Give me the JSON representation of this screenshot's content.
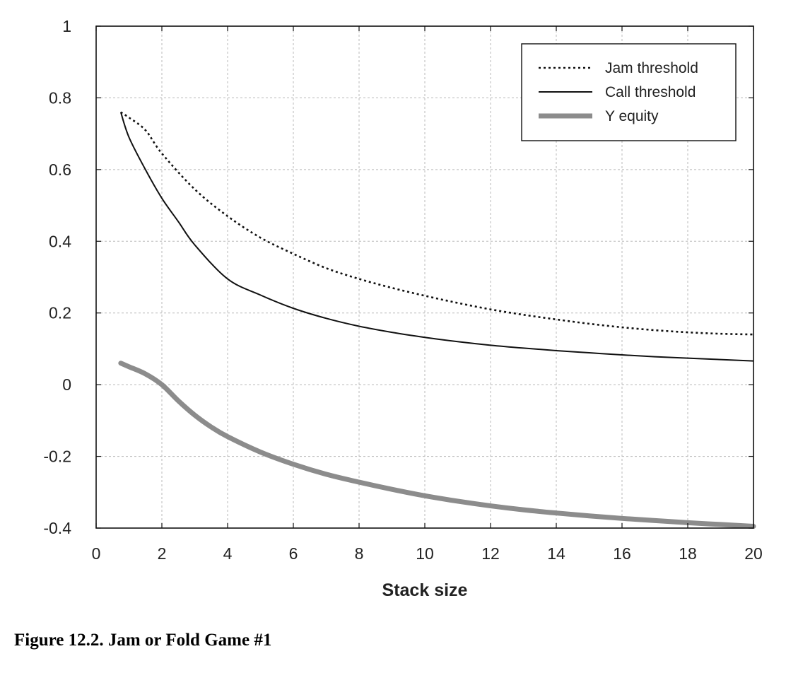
{
  "caption": "Figure 12.2. Jam or Fold Game #1",
  "chart_data": {
    "type": "line",
    "title": "",
    "xlabel": "Stack size",
    "ylabel": "",
    "xlim": [
      0,
      20
    ],
    "ylim": [
      -0.4,
      1
    ],
    "xticks": [
      0,
      2,
      4,
      6,
      8,
      10,
      12,
      14,
      16,
      18,
      20
    ],
    "xtick_labels": [
      "0",
      "2",
      "4",
      "6",
      "8",
      "10",
      "12",
      "14",
      "16",
      "18",
      "20"
    ],
    "yticks": [
      -0.4,
      -0.2,
      0,
      0.2,
      0.4,
      0.6,
      0.8,
      1
    ],
    "ytick_labels": [
      "-0.4",
      "-0.2",
      "0",
      "0.2",
      "0.4",
      "0.6",
      "0.8",
      "1"
    ],
    "grid": true,
    "legend_position": "top-right",
    "series": [
      {
        "name": "Jam threshold",
        "style": "dotted",
        "color": "#111111",
        "x": [
          0.75,
          1,
          1.5,
          2,
          3,
          4,
          5,
          6,
          7,
          8,
          9,
          10,
          11,
          12,
          13,
          14,
          15,
          16,
          17,
          18,
          19,
          20
        ],
        "y": [
          0.76,
          0.745,
          0.71,
          0.645,
          0.545,
          0.47,
          0.41,
          0.365,
          0.325,
          0.295,
          0.27,
          0.248,
          0.228,
          0.21,
          0.195,
          0.182,
          0.17,
          0.16,
          0.152,
          0.146,
          0.142,
          0.14
        ]
      },
      {
        "name": "Call threshold",
        "style": "solid",
        "color": "#111111",
        "x": [
          0.75,
          1,
          1.5,
          2,
          2.5,
          3,
          4,
          5,
          6,
          7,
          8,
          9,
          10,
          11,
          12,
          13,
          14,
          15,
          16,
          17,
          18,
          19,
          20
        ],
        "y": [
          0.76,
          0.69,
          0.6,
          0.52,
          0.455,
          0.39,
          0.295,
          0.25,
          0.213,
          0.185,
          0.163,
          0.146,
          0.132,
          0.12,
          0.11,
          0.102,
          0.095,
          0.089,
          0.083,
          0.078,
          0.074,
          0.07,
          0.066
        ]
      },
      {
        "name": "Y equity",
        "style": "thick",
        "color": "#8c8c8c",
        "x": [
          0.75,
          1,
          1.5,
          2,
          2.5,
          3,
          3.5,
          4,
          5,
          6,
          7,
          8,
          9,
          10,
          11,
          12,
          13,
          14,
          15,
          16,
          17,
          18,
          19,
          20
        ],
        "y": [
          0.06,
          0.05,
          0.03,
          0.0,
          -0.045,
          -0.085,
          -0.118,
          -0.145,
          -0.188,
          -0.222,
          -0.25,
          -0.272,
          -0.292,
          -0.31,
          -0.325,
          -0.338,
          -0.349,
          -0.358,
          -0.366,
          -0.373,
          -0.379,
          -0.385,
          -0.39,
          -0.395
        ]
      }
    ]
  }
}
